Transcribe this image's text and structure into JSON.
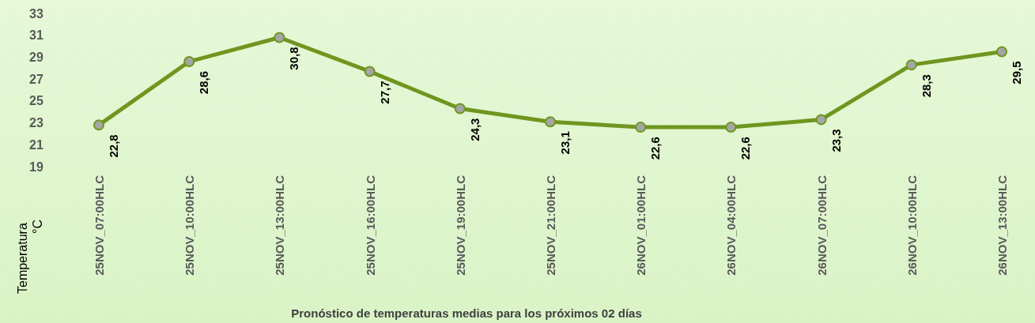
{
  "chart_data": {
    "type": "line",
    "title": "Pronóstico de temperaturas medias para los próximos 02 días",
    "ylabel": "Temperatura °C",
    "categories": [
      "25NOV_07:00HLC",
      "25NOV_10:00HLC",
      "25NOV_13:00HLC",
      "25NOV_16:00HLC",
      "25NOV_19:00HLC",
      "25NOV_21:00HLC",
      "26NOV_01:00HLC",
      "26NOV_04:00HLC",
      "26NOV_07:00HLC",
      "26NOV_10:00HLC",
      "26NOV_13:00HLC"
    ],
    "series": [
      {
        "color": "#6f961f",
        "values": [
          22.8,
          28.6,
          30.8,
          27.7,
          24.3,
          23.1,
          22.6,
          22.6,
          23.3,
          28.3,
          29.5
        ],
        "value_labels": [
          "22,8",
          "28,6",
          "30,8",
          "27,7",
          "24,3",
          "23,1",
          "22,6",
          "22,6",
          "23,3",
          "28,3",
          "29,5"
        ]
      }
    ],
    "ylim": [
      19,
      33
    ],
    "yticks": [
      19,
      21,
      23,
      25,
      27,
      29,
      31,
      33
    ],
    "marker": "circle",
    "line_style": "solid",
    "grid": false
  }
}
